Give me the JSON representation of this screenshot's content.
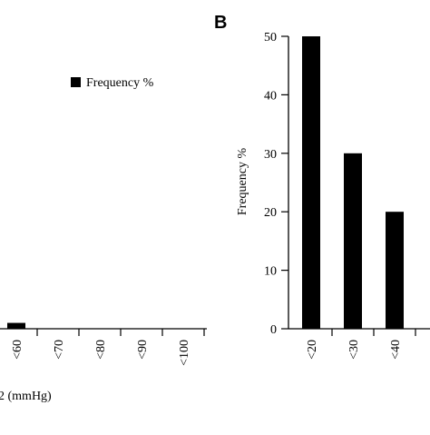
{
  "chart_data": [
    {
      "panel_label": "",
      "type": "bar",
      "categories": [
        "<60",
        "<70",
        "<80",
        "<90",
        "<100"
      ],
      "values": [
        1,
        0,
        0,
        0,
        0
      ],
      "legend": [
        "Frequency %"
      ],
      "xlabel_fragment": "2 (mmHg)",
      "ylim": [
        0,
        50
      ],
      "bar_color": "#000000"
    },
    {
      "panel_label": "B",
      "type": "bar",
      "categories": [
        "<20",
        "<30",
        "<40"
      ],
      "values": [
        50,
        30,
        20
      ],
      "ylabel": "Frequency %",
      "ylim": [
        0,
        50
      ],
      "yticks": [
        0,
        10,
        20,
        30,
        40,
        50
      ],
      "bar_color": "#000000"
    }
  ]
}
